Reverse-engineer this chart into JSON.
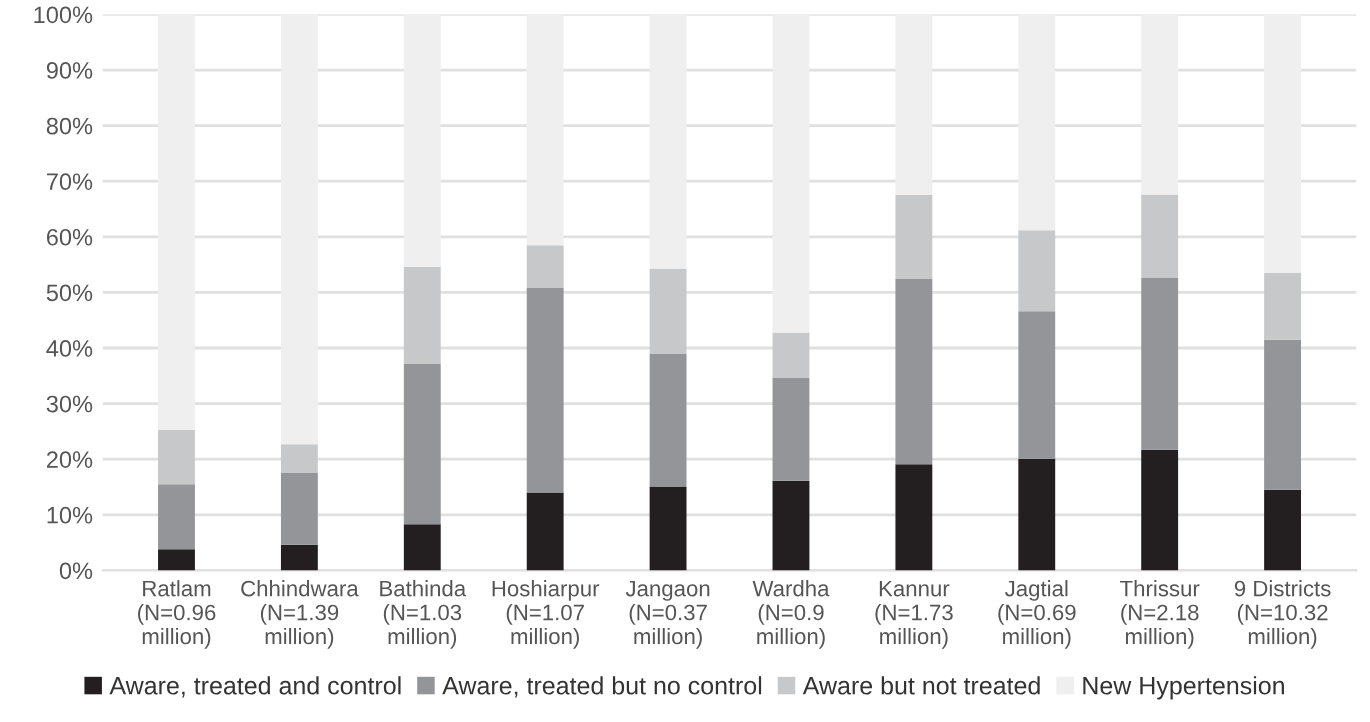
{
  "chart_data": {
    "type": "bar",
    "stacked": true,
    "categories": [
      "Ratlam\n(N=0.96\nmillion)",
      "Chhindwara\n(N=1.39\nmillion)",
      "Bathinda\n(N=1.03\nmillion)",
      "Hoshiarpur\n(N=1.07\nmillion)",
      "Jangaon\n(N=0.37\nmillion)",
      "Wardha\n(N=0.9\nmillion)",
      "Kannur\n(N=1.73\nmillion)",
      "Jagtial\n(N=0.69\nmillion)",
      "Thrissur\n(N=2.18\nmillion)",
      "9 Districts\n(N=10.32\nmillion)"
    ],
    "series": [
      {
        "name": "Aware, treated and control",
        "color": "#231f20",
        "values": [
          3.8,
          4.6,
          8.3,
          14.0,
          15.1,
          16.1,
          19.1,
          20.1,
          21.7,
          14.5
        ]
      },
      {
        "name": "Aware, treated but no control",
        "color": "#939598",
        "values": [
          11.7,
          13.0,
          28.9,
          36.8,
          23.9,
          18.5,
          33.3,
          26.5,
          30.9,
          27.0
        ]
      },
      {
        "name": "Aware but not treated",
        "color": "#c7c8ca",
        "values": [
          9.8,
          5.1,
          17.4,
          7.7,
          15.3,
          8.2,
          15.1,
          14.6,
          15.0,
          12.0
        ]
      },
      {
        "name": "New Hypertension",
        "color": "#efefef",
        "values": [
          74.7,
          77.3,
          45.4,
          41.5,
          45.7,
          57.2,
          32.5,
          38.8,
          32.4,
          46.5
        ]
      }
    ],
    "ylim": [
      0,
      100
    ],
    "yticks": [
      {
        "value": 0,
        "label": "0%"
      },
      {
        "value": 10,
        "label": "10%"
      },
      {
        "value": 20,
        "label": "20%"
      },
      {
        "value": 30,
        "label": "30%"
      },
      {
        "value": 40,
        "label": "40%"
      },
      {
        "value": 50,
        "label": "50%"
      },
      {
        "value": 60,
        "label": "60%"
      },
      {
        "value": 70,
        "label": "70%"
      },
      {
        "value": 80,
        "label": "80%"
      },
      {
        "value": 90,
        "label": "90%"
      },
      {
        "value": 100,
        "label": "100%"
      }
    ],
    "grid": "y",
    "legend": "bottom"
  }
}
